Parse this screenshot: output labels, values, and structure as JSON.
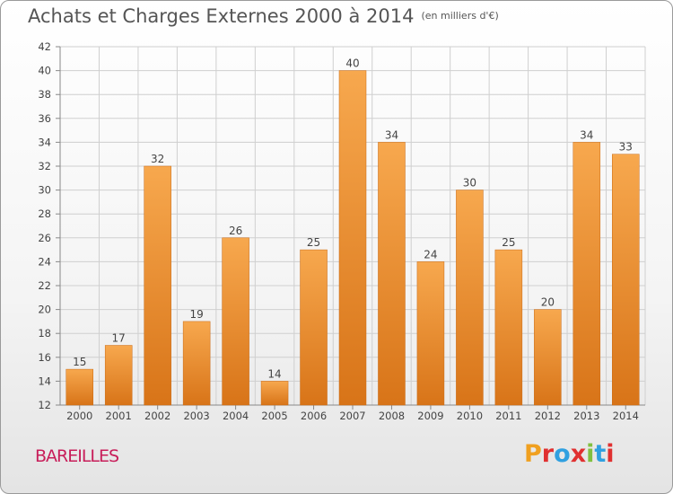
{
  "header": {
    "title": "Achats et Charges Externes 2000 à 2014",
    "unit": "(en milliers d'€)"
  },
  "footer": {
    "commune": "BAREILLES",
    "logo_text": "Proxiti",
    "logo_colors": [
      "#f0a020",
      "#e03030",
      "#30a0e0",
      "#e03030",
      "#80c040",
      "#30a0e0",
      "#e03030"
    ]
  },
  "colors": {
    "bar_light": "#f7a84e",
    "bar_dark": "#d87418",
    "grid": "#cfcfcf",
    "commune": "#c81e5a"
  },
  "chart_data": {
    "type": "bar",
    "title": "Achats et Charges Externes 2000 à 2014",
    "subtitle": "(en milliers d'€)",
    "xlabel": "",
    "ylabel": "",
    "categories": [
      "2000",
      "2001",
      "2002",
      "2003",
      "2004",
      "2005",
      "2006",
      "2007",
      "2008",
      "2009",
      "2010",
      "2011",
      "2012",
      "2013",
      "2014"
    ],
    "values": [
      15,
      17,
      32,
      19,
      26,
      14,
      25,
      40,
      34,
      24,
      30,
      25,
      20,
      34,
      33
    ],
    "ylim": [
      12,
      42
    ],
    "yticks": [
      12,
      14,
      16,
      18,
      20,
      22,
      24,
      26,
      28,
      30,
      32,
      34,
      36,
      38,
      40,
      42
    ],
    "grid": true,
    "data_labels": true
  }
}
